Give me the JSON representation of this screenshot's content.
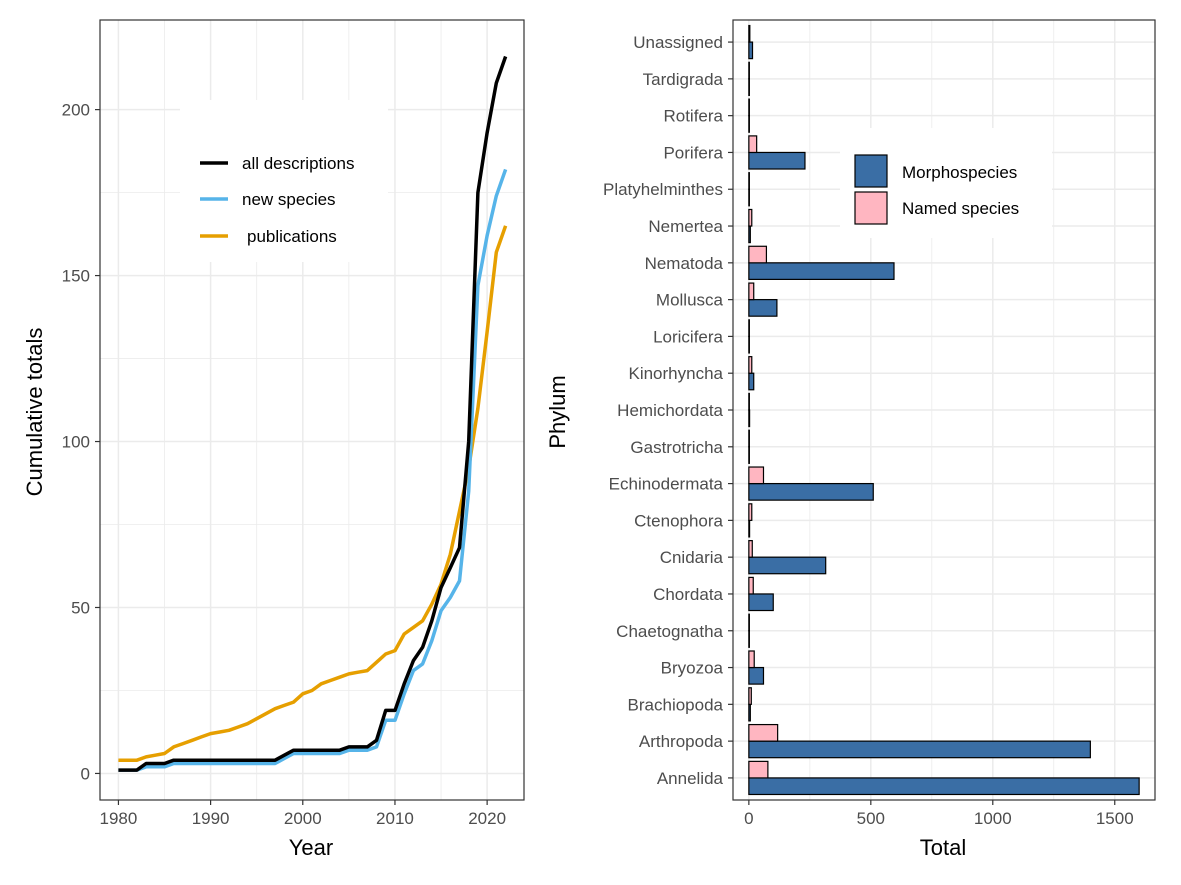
{
  "colors": {
    "all_descriptions": "#000000",
    "new_species": "#56B4E9",
    "publications": "#E69F00",
    "morphospecies": "#3A6EA5",
    "named_species": "#FFB6C1",
    "grid": "#EBEBEB",
    "axis_text": "#4D4D4D"
  },
  "chart_data": [
    {
      "type": "line",
      "xlabel": "Year",
      "ylabel": "Cumulative totals",
      "xlim": [
        1978,
        2024
      ],
      "ylim": [
        -8,
        227
      ],
      "xticks": [
        1980,
        1990,
        2000,
        2010,
        2020
      ],
      "yticks": [
        0,
        50,
        100,
        150,
        200
      ],
      "grid": true,
      "legend_position": "top-left inside",
      "series": [
        {
          "name": "all descriptions",
          "color_key": "all_descriptions",
          "x": [
            1980,
            1981,
            1982,
            1983,
            1984,
            1985,
            1986,
            1987,
            1988,
            1989,
            1990,
            1991,
            1992,
            1993,
            1994,
            1995,
            1996,
            1997,
            1998,
            1999,
            2000,
            2001,
            2002,
            2003,
            2004,
            2005,
            2006,
            2007,
            2008,
            2009,
            2010,
            2011,
            2012,
            2013,
            2014,
            2015,
            2016,
            2017,
            2018,
            2019,
            2020,
            2021,
            2022
          ],
          "values": [
            1,
            1,
            1,
            3,
            3,
            3,
            4,
            4,
            4,
            4,
            4,
            4,
            4,
            4,
            4,
            4,
            4,
            4,
            5.5,
            7,
            7,
            7,
            7,
            7,
            7,
            8,
            8,
            8,
            10,
            19,
            19,
            27,
            34,
            38,
            46,
            56,
            62,
            68,
            100,
            175,
            193,
            208,
            216
          ]
        },
        {
          "name": "new species",
          "color_key": "new_species",
          "x": [
            1980,
            1981,
            1982,
            1983,
            1984,
            1985,
            1986,
            1987,
            1988,
            1989,
            1990,
            1991,
            1992,
            1993,
            1994,
            1995,
            1996,
            1997,
            1998,
            1999,
            2000,
            2001,
            2002,
            2003,
            2004,
            2005,
            2006,
            2007,
            2008,
            2009,
            2010,
            2011,
            2012,
            2013,
            2014,
            2015,
            2016,
            2017,
            2018,
            2019,
            2020,
            2021,
            2022
          ],
          "values": [
            1,
            1,
            1,
            2,
            2,
            2,
            3,
            3,
            3,
            3,
            3,
            3,
            3,
            3,
            3,
            3,
            3,
            3,
            4.5,
            6,
            6,
            6,
            6,
            6,
            6,
            7,
            7,
            7,
            8,
            16,
            16,
            24,
            31,
            33,
            40,
            49,
            53,
            58,
            85,
            147,
            162,
            174,
            182
          ]
        },
        {
          "name": "publications",
          "color_key": "publications",
          "x": [
            1980,
            1981,
            1982,
            1983,
            1984,
            1985,
            1986,
            1987,
            1988,
            1989,
            1990,
            1991,
            1992,
            1993,
            1994,
            1995,
            1996,
            1997,
            1998,
            1999,
            2000,
            2001,
            2002,
            2003,
            2004,
            2005,
            2006,
            2007,
            2008,
            2009,
            2010,
            2011,
            2012,
            2013,
            2014,
            2015,
            2016,
            2017,
            2018,
            2019,
            2020,
            2021,
            2022
          ],
          "values": [
            4,
            4,
            4,
            5,
            5.5,
            6,
            8,
            9,
            10,
            11,
            12,
            12.5,
            13,
            14,
            15,
            16.5,
            18,
            19.5,
            20.5,
            21.5,
            24,
            25,
            27,
            28,
            29,
            30,
            30.5,
            31,
            33.5,
            36,
            37,
            42,
            44,
            46,
            51,
            57,
            66,
            79,
            92,
            110,
            133,
            157,
            165
          ]
        }
      ]
    },
    {
      "type": "bar",
      "orientation": "horizontal",
      "xlabel": "Total",
      "ylabel": "Phylum",
      "xlim": [
        -65,
        1665
      ],
      "xticks": [
        0,
        500,
        1000,
        1500
      ],
      "grid": true,
      "legend_position": "top-right inside",
      "categories": [
        "Annelida",
        "Arthropoda",
        "Brachiopoda",
        "Bryozoa",
        "Chaetognatha",
        "Chordata",
        "Cnidaria",
        "Ctenophora",
        "Echinodermata",
        "Gastrotricha",
        "Hemichordata",
        "Kinorhyncha",
        "Loricifera",
        "Mollusca",
        "Nematoda",
        "Nemertea",
        "Platyhelminthes",
        "Porifera",
        "Rotifera",
        "Tardigrada",
        "Unassigned"
      ],
      "series": [
        {
          "name": "Morphospecies",
          "color_key": "morphospecies",
          "values": [
            1600,
            1400,
            6,
            60,
            2,
            100,
            315,
            3,
            510,
            1,
            3,
            20,
            1,
            115,
            595,
            6,
            2,
            230,
            1,
            1,
            15
          ]
        },
        {
          "name": "Named species",
          "color_key": "named_species",
          "values": [
            78,
            118,
            10,
            22,
            1,
            18,
            14,
            12,
            60,
            1,
            1,
            12,
            2,
            20,
            72,
            12,
            2,
            32,
            1,
            1,
            4
          ]
        }
      ]
    }
  ]
}
